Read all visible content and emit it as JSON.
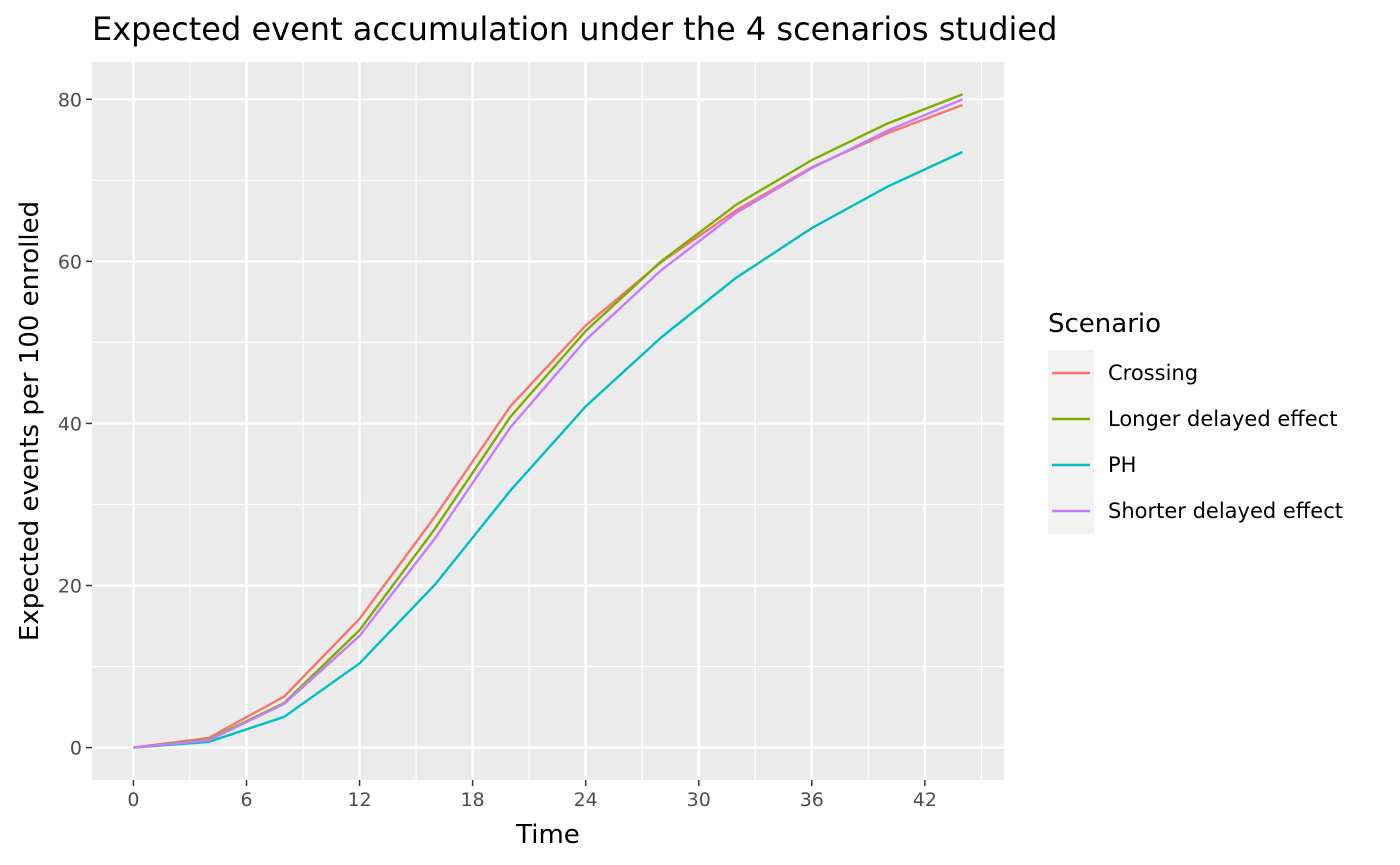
{
  "chart_data": {
    "type": "line",
    "title": "Expected event accumulation under the 4 scenarios studied",
    "xlabel": "Time",
    "ylabel": "Expected events per 100 enrolled",
    "xlim": [
      -2.2,
      46.2
    ],
    "ylim": [
      -4.0,
      84.6
    ],
    "x_ticks": [
      0,
      6,
      12,
      18,
      24,
      30,
      36,
      42
    ],
    "y_ticks": [
      0,
      20,
      40,
      60,
      80
    ],
    "grid": true,
    "legend": {
      "title": "Scenario",
      "position": "right"
    },
    "x": [
      0,
      4,
      8,
      12,
      16,
      20,
      24,
      28,
      32,
      36,
      40,
      44
    ],
    "series": [
      {
        "name": "Crossing",
        "color": "#F8766D",
        "values": [
          0,
          1.2,
          6.3,
          15.9,
          28.5,
          42.1,
          52.1,
          59.9,
          66.3,
          71.6,
          75.8,
          79.3
        ]
      },
      {
        "name": "Longer delayed effect",
        "color": "#7CAE00",
        "values": [
          0,
          1.0,
          5.5,
          14.5,
          27.0,
          40.8,
          51.4,
          60.0,
          67.0,
          72.5,
          77.0,
          80.6
        ]
      },
      {
        "name": "PH",
        "color": "#00BFC4",
        "values": [
          0,
          0.7,
          3.8,
          10.4,
          20.1,
          31.7,
          42.1,
          50.6,
          58.0,
          64.1,
          69.2,
          73.5
        ]
      },
      {
        "name": "Shorter delayed effect",
        "color": "#C77CFF",
        "values": [
          0,
          0.9,
          5.4,
          13.8,
          25.8,
          39.5,
          50.3,
          58.9,
          66.0,
          71.5,
          76.1,
          80.0
        ]
      }
    ]
  }
}
